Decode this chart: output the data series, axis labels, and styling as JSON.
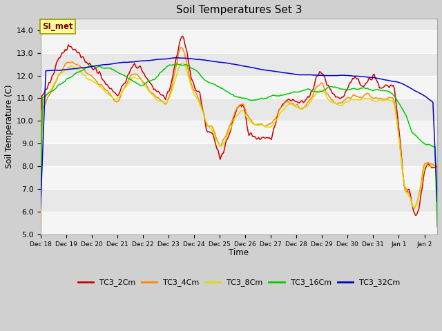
{
  "title": "Soil Temperatures Set 3",
  "xlabel": "Time",
  "ylabel": "Soil Temperature (C)",
  "ylim": [
    5.0,
    14.5
  ],
  "yticks": [
    5.0,
    6.0,
    7.0,
    8.0,
    9.0,
    10.0,
    11.0,
    12.0,
    13.0,
    14.0
  ],
  "band_color1": "#e8e8e8",
  "band_color2": "#f5f5f5",
  "fig_bg": "#d0d0d0",
  "series_colors": {
    "TC3_2Cm": "#cc0000",
    "TC3_4Cm": "#ff8800",
    "TC3_8Cm": "#dddd00",
    "TC3_16Cm": "#00cc00",
    "TC3_32Cm": "#0000cc"
  },
  "watermark": "SI_met",
  "watermark_color": "#800000",
  "watermark_bg": "#ffff99",
  "watermark_border": "#999900",
  "tick_labels": [
    "Dec 18",
    "Dec 19",
    "Dec 20",
    "Dec 21",
    "Dec 22",
    "Dec 23",
    "Dec 24",
    "Dec 25",
    "Dec 26",
    "Dec 27",
    "Dec 28",
    "Dec 29",
    "Dec 30",
    "Dec 31",
    "Jan 1",
    "Jan 2"
  ]
}
